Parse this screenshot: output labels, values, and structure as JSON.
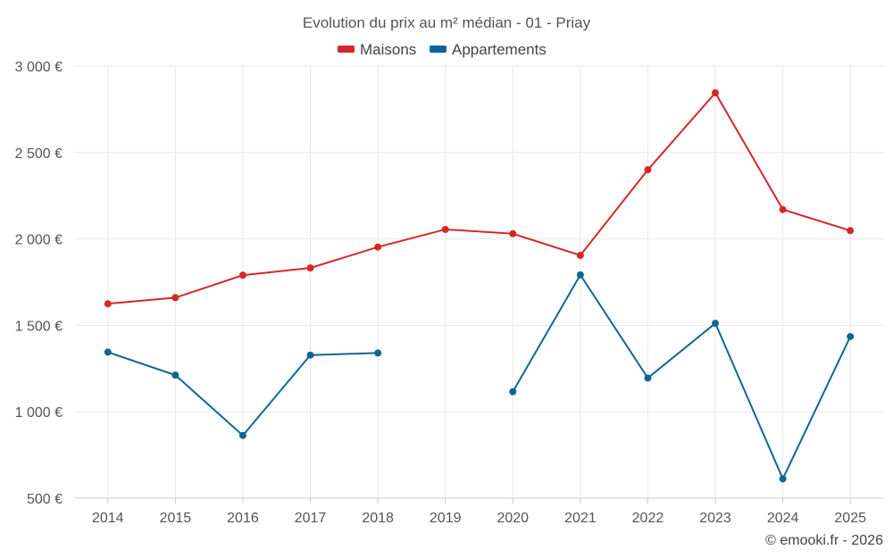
{
  "chart_data": {
    "type": "line",
    "title": "Evolution du prix au m² médian - 01 - Priay",
    "categories": [
      "2014",
      "2015",
      "2016",
      "2017",
      "2018",
      "2019",
      "2020",
      "2021",
      "2022",
      "2023",
      "2024",
      "2025"
    ],
    "series": [
      {
        "name": "Maisons",
        "color": "#d62728",
        "values": [
          1625,
          1660,
          1790,
          1832,
          1953,
          2055,
          2030,
          1905,
          2400,
          2845,
          2170,
          2048
        ]
      },
      {
        "name": "Appartements",
        "color": "#0f6696",
        "values": [
          1345,
          1212,
          863,
          1328,
          1340,
          null,
          1116,
          1792,
          1195,
          1512,
          612,
          1435
        ]
      }
    ],
    "ylim": [
      500,
      3000
    ],
    "yticks": [
      500,
      1000,
      1500,
      2000,
      2500,
      3000
    ],
    "ytick_labels": [
      "500 €",
      "1 000 €",
      "1 500 €",
      "2 000 €",
      "2 500 €",
      "3 000 €"
    ],
    "legend_position": "top-center",
    "grid": true
  },
  "credit": "© emooki.fr - 2026"
}
